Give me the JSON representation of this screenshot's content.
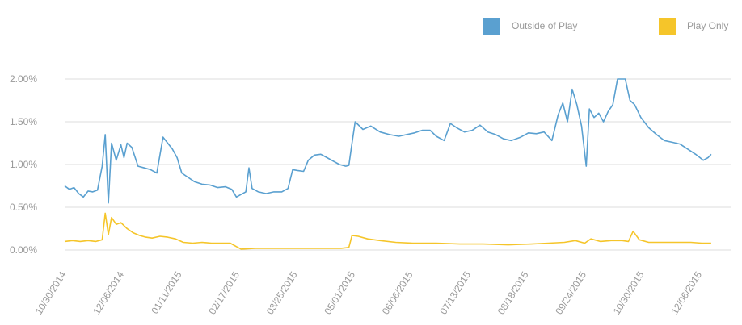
{
  "colors": {
    "outside": "#5aa0d0",
    "play": "#f5c52a",
    "grid": "#dcdcdc",
    "axis_text": "#999999"
  },
  "legend": [
    {
      "label": "Outside of Play",
      "color": "#5aa0d0"
    },
    {
      "label": "Play Only",
      "color": "#f5c52a"
    }
  ],
  "chart_data": {
    "type": "line",
    "grid": true,
    "legend_position": "top-right",
    "y_ticks": [
      "0.00%",
      "0.50%",
      "1.00%",
      "1.50%",
      "2.00%"
    ],
    "ylim": [
      0,
      0.02
    ],
    "x_ticks": [
      "10/30/2014",
      "12/06/2014",
      "01/11/2015",
      "02/17/2015",
      "03/25/2015",
      "05/01/2015",
      "06/06/2015",
      "07/13/2015",
      "08/18/2015",
      "09/24/2015",
      "10/30/2015",
      "12/06/2015"
    ],
    "xlim": [
      "2014-10-30",
      "2015-12-31"
    ],
    "series": [
      {
        "name": "Outside of Play",
        "points": [
          [
            "2014-10-30",
            0.0075
          ],
          [
            "2014-11-02",
            0.0071
          ],
          [
            "2014-11-05",
            0.0073
          ],
          [
            "2014-11-08",
            0.0066
          ],
          [
            "2014-11-11",
            0.0062
          ],
          [
            "2014-11-14",
            0.0069
          ],
          [
            "2014-11-17",
            0.0068
          ],
          [
            "2014-11-20",
            0.007
          ],
          [
            "2014-11-23",
            0.0098
          ],
          [
            "2014-11-25",
            0.0135
          ],
          [
            "2014-11-27",
            0.0055
          ],
          [
            "2014-11-29",
            0.0125
          ],
          [
            "2014-12-02",
            0.0105
          ],
          [
            "2014-12-05",
            0.0123
          ],
          [
            "2014-12-07",
            0.0108
          ],
          [
            "2014-12-09",
            0.0125
          ],
          [
            "2014-12-12",
            0.012
          ],
          [
            "2014-12-16",
            0.0098
          ],
          [
            "2014-12-20",
            0.0096
          ],
          [
            "2014-12-24",
            0.0094
          ],
          [
            "2014-12-28",
            0.009
          ],
          [
            "2015-01-01",
            0.0132
          ],
          [
            "2015-01-04",
            0.0125
          ],
          [
            "2015-01-07",
            0.0118
          ],
          [
            "2015-01-10",
            0.0108
          ],
          [
            "2015-01-13",
            0.009
          ],
          [
            "2015-01-17",
            0.0085
          ],
          [
            "2015-01-21",
            0.008
          ],
          [
            "2015-01-26",
            0.0077
          ],
          [
            "2015-01-31",
            0.0076
          ],
          [
            "2015-02-05",
            0.0073
          ],
          [
            "2015-02-10",
            0.0074
          ],
          [
            "2015-02-14",
            0.0071
          ],
          [
            "2015-02-17",
            0.0062
          ],
          [
            "2015-02-20",
            0.0065
          ],
          [
            "2015-02-23",
            0.0068
          ],
          [
            "2015-02-25",
            0.0096
          ],
          [
            "2015-02-27",
            0.0072
          ],
          [
            "2015-03-03",
            0.0068
          ],
          [
            "2015-03-08",
            0.0066
          ],
          [
            "2015-03-13",
            0.0068
          ],
          [
            "2015-03-18",
            0.0068
          ],
          [
            "2015-03-22",
            0.0072
          ],
          [
            "2015-03-25",
            0.0094
          ],
          [
            "2015-03-28",
            0.0093
          ],
          [
            "2015-04-01",
            0.0092
          ],
          [
            "2015-04-04",
            0.0105
          ],
          [
            "2015-04-08",
            0.0111
          ],
          [
            "2015-04-12",
            0.0112
          ],
          [
            "2015-04-16",
            0.0108
          ],
          [
            "2015-04-20",
            0.0104
          ],
          [
            "2015-04-24",
            0.01
          ],
          [
            "2015-04-28",
            0.0098
          ],
          [
            "2015-04-30",
            0.0099
          ],
          [
            "2015-05-02",
            0.0125
          ],
          [
            "2015-05-04",
            0.015
          ],
          [
            "2015-05-09",
            0.0141
          ],
          [
            "2015-05-14",
            0.0145
          ],
          [
            "2015-05-20",
            0.0138
          ],
          [
            "2015-05-26",
            0.0135
          ],
          [
            "2015-06-01",
            0.0133
          ],
          [
            "2015-06-06",
            0.0135
          ],
          [
            "2015-06-11",
            0.0137
          ],
          [
            "2015-06-16",
            0.014
          ],
          [
            "2015-06-21",
            0.014
          ],
          [
            "2015-06-25",
            0.0133
          ],
          [
            "2015-06-30",
            0.0128
          ],
          [
            "2015-07-04",
            0.0148
          ],
          [
            "2015-07-08",
            0.0143
          ],
          [
            "2015-07-13",
            0.0138
          ],
          [
            "2015-07-18",
            0.014
          ],
          [
            "2015-07-23",
            0.0146
          ],
          [
            "2015-07-28",
            0.0138
          ],
          [
            "2015-08-02",
            0.0135
          ],
          [
            "2015-08-07",
            0.013
          ],
          [
            "2015-08-12",
            0.0128
          ],
          [
            "2015-08-18",
            0.0132
          ],
          [
            "2015-08-23",
            0.0137
          ],
          [
            "2015-08-28",
            0.0136
          ],
          [
            "2015-09-02",
            0.0138
          ],
          [
            "2015-09-07",
            0.0128
          ],
          [
            "2015-09-11",
            0.0158
          ],
          [
            "2015-09-14",
            0.0172
          ],
          [
            "2015-09-17",
            0.015
          ],
          [
            "2015-09-20",
            0.0188
          ],
          [
            "2015-09-23",
            0.017
          ],
          [
            "2015-09-26",
            0.0145
          ],
          [
            "2015-09-29",
            0.0098
          ],
          [
            "2015-10-01",
            0.0165
          ],
          [
            "2015-10-04",
            0.0155
          ],
          [
            "2015-10-07",
            0.016
          ],
          [
            "2015-10-10",
            0.015
          ],
          [
            "2015-10-13",
            0.0162
          ],
          [
            "2015-10-16",
            0.017
          ],
          [
            "2015-10-19",
            0.02
          ],
          [
            "2015-10-24",
            0.02
          ],
          [
            "2015-10-27",
            0.0175
          ],
          [
            "2015-10-30",
            0.017
          ],
          [
            "2015-11-03",
            0.0155
          ],
          [
            "2015-11-08",
            0.0143
          ],
          [
            "2015-11-13",
            0.0135
          ],
          [
            "2015-11-18",
            0.0128
          ],
          [
            "2015-11-23",
            0.0126
          ],
          [
            "2015-11-28",
            0.0124
          ],
          [
            "2015-12-03",
            0.0118
          ],
          [
            "2015-12-08",
            0.0112
          ],
          [
            "2015-12-13",
            0.0105
          ],
          [
            "2015-12-16",
            0.0108
          ],
          [
            "2015-12-18",
            0.0112
          ]
        ]
      },
      {
        "name": "Play Only",
        "points": [
          [
            "2014-10-30",
            0.001
          ],
          [
            "2014-11-04",
            0.0011
          ],
          [
            "2014-11-09",
            0.001
          ],
          [
            "2014-11-14",
            0.0011
          ],
          [
            "2014-11-19",
            0.001
          ],
          [
            "2014-11-23",
            0.0012
          ],
          [
            "2014-11-25",
            0.0043
          ],
          [
            "2014-11-27",
            0.0018
          ],
          [
            "2014-11-29",
            0.0038
          ],
          [
            "2014-12-02",
            0.003
          ],
          [
            "2014-12-05",
            0.0032
          ],
          [
            "2014-12-09",
            0.0025
          ],
          [
            "2014-12-13",
            0.002
          ],
          [
            "2014-12-17",
            0.0017
          ],
          [
            "2014-12-21",
            0.0015
          ],
          [
            "2014-12-25",
            0.0014
          ],
          [
            "2014-12-30",
            0.0016
          ],
          [
            "2015-01-04",
            0.0015
          ],
          [
            "2015-01-09",
            0.0013
          ],
          [
            "2015-01-14",
            0.0009
          ],
          [
            "2015-01-20",
            0.0008
          ],
          [
            "2015-01-26",
            0.0009
          ],
          [
            "2015-02-01",
            0.0008
          ],
          [
            "2015-02-07",
            0.0008
          ],
          [
            "2015-02-13",
            0.0008
          ],
          [
            "2015-02-17",
            0.0004
          ],
          [
            "2015-02-20",
            0.0001
          ],
          [
            "2015-03-01",
            0.0002
          ],
          [
            "2015-03-15",
            0.0002
          ],
          [
            "2015-03-30",
            0.0002
          ],
          [
            "2015-04-14",
            0.0002
          ],
          [
            "2015-04-25",
            0.0002
          ],
          [
            "2015-04-30",
            0.0003
          ],
          [
            "2015-05-02",
            0.0017
          ],
          [
            "2015-05-06",
            0.0016
          ],
          [
            "2015-05-12",
            0.0013
          ],
          [
            "2015-05-20",
            0.0011
          ],
          [
            "2015-05-30",
            0.0009
          ],
          [
            "2015-06-10",
            0.0008
          ],
          [
            "2015-06-25",
            0.0008
          ],
          [
            "2015-07-10",
            0.0007
          ],
          [
            "2015-07-25",
            0.0007
          ],
          [
            "2015-08-10",
            0.0006
          ],
          [
            "2015-08-25",
            0.0007
          ],
          [
            "2015-09-05",
            0.0008
          ],
          [
            "2015-09-15",
            0.0009
          ],
          [
            "2015-09-22",
            0.0011
          ],
          [
            "2015-09-28",
            0.0008
          ],
          [
            "2015-10-02",
            0.0013
          ],
          [
            "2015-10-08",
            0.001
          ],
          [
            "2015-10-15",
            0.0011
          ],
          [
            "2015-10-22",
            0.0011
          ],
          [
            "2015-10-26",
            0.001
          ],
          [
            "2015-10-29",
            0.0022
          ],
          [
            "2015-11-02",
            0.0012
          ],
          [
            "2015-11-08",
            0.0009
          ],
          [
            "2015-11-15",
            0.0009
          ],
          [
            "2015-11-25",
            0.0009
          ],
          [
            "2015-12-05",
            0.0009
          ],
          [
            "2015-12-12",
            0.0008
          ],
          [
            "2015-12-18",
            0.0008
          ]
        ]
      }
    ]
  }
}
